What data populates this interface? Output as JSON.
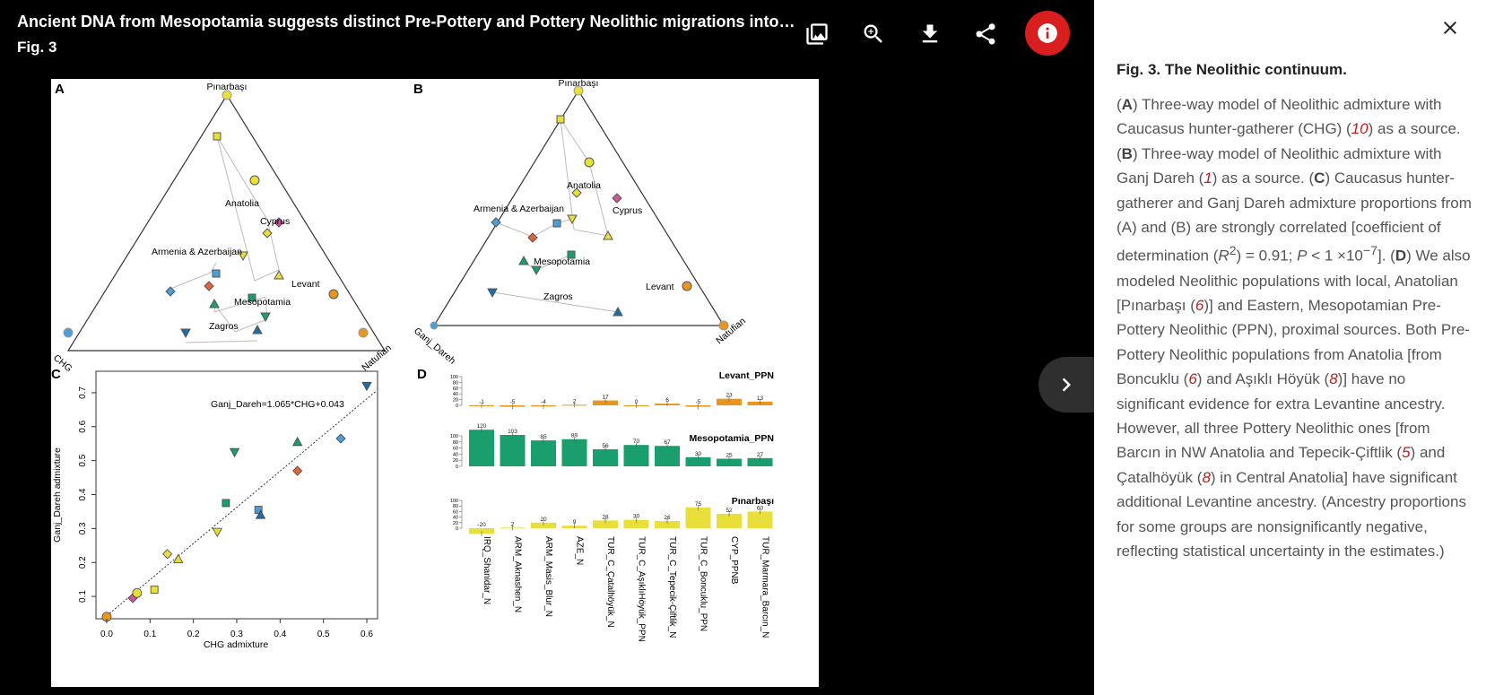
{
  "header": {
    "title": "Ancient DNA from Mesopotamia suggests distinct Pre-Pottery and Pottery Neolithic migrations into An...",
    "fig_label": "Fig. 3"
  },
  "toolbar": {
    "icons": [
      "gallery-icon",
      "zoom-in-icon",
      "download-icon",
      "share-icon",
      "info-icon"
    ]
  },
  "nav": {
    "next_icon": "chevron-right-icon",
    "close_icon": "close-icon"
  },
  "colors": {
    "accent_red": "#d81e1e",
    "link_red": "#c21b1b"
  },
  "figure": {
    "panel_a": {
      "label": "A",
      "corners": {
        "top": "Pınarbaşı",
        "left": "CHG",
        "right": "Natufian"
      },
      "group_labels": [
        "Anatolia",
        "Cyprus",
        "Armenia & Azerbaijan",
        "Levant",
        "Mesopotamia",
        "Zagros"
      ]
    },
    "panel_b": {
      "label": "B",
      "corners": {
        "top": "Pınarbaşı",
        "left": "Ganj_Dareh",
        "right": "Natufian"
      },
      "group_labels": [
        "Anatolia",
        "Cyprus",
        "Armenia & Azerbaijan",
        "Levant",
        "Mesopotamia",
        "Zagros"
      ]
    },
    "panel_c": {
      "label": "C",
      "equation": "Ganj_Dareh=1.065*CHG+0.043",
      "xlabel": "CHG admixture",
      "ylabel": "Ganj_Dareh admixture",
      "xticks": [
        "0.0",
        "0.1",
        "0.2",
        "0.3",
        "0.4",
        "0.5",
        "0.6"
      ],
      "yticks": [
        "0.1",
        "0.2",
        "0.3",
        "0.4",
        "0.5",
        "0.6",
        "0.7"
      ]
    },
    "panel_d": {
      "label": "D",
      "yticks": [
        "100",
        "80",
        "60",
        "40",
        "20",
        "0"
      ],
      "categories": [
        "IRQ_Shanidar_N",
        "ARM_Aknashen_N",
        "ARM_Masis_Blur_N",
        "AZE_N",
        "TUR_C_Çatalhöyük_N",
        "TUR_C_AşıklıHöyük_PPN",
        "TUR_C_Tepecik-Çiftlik_N",
        "TUR_C_Boncuklu_PPN",
        "CYP_PPNB",
        "TUR_Marmara_Barcın_N"
      ],
      "series": [
        {
          "name": "Levant_PPN",
          "values": [
            -1,
            -5,
            -4,
            2,
            17,
            0,
            6,
            -5,
            23,
            13
          ],
          "labels": [
            "-1",
            "-5",
            "-4",
            "2",
            "17",
            "0",
            "6",
            "-5",
            "23",
            "13"
          ],
          "color": "#e8961e"
        },
        {
          "name": "Mesopotamia_PPN",
          "values": [
            120,
            103,
            85,
            89,
            56,
            70,
            67,
            30,
            25,
            27
          ],
          "labels": [
            "120",
            "103",
            "85",
            "89",
            "56",
            "70",
            "67",
            "30",
            "25",
            "27"
          ],
          "color": "#1a9e6e"
        },
        {
          "name": "Pınarbaşı",
          "values": [
            -20,
            2,
            20,
            9,
            28,
            30,
            26,
            75,
            52,
            60
          ],
          "labels": [
            "-20",
            "2",
            "20",
            "9",
            "28",
            "30",
            "26",
            "75",
            "52",
            "60"
          ],
          "color": "#e8df3a"
        }
      ]
    }
  },
  "chart_data": {
    "type": "bar",
    "categories": [
      "IRQ_Shanidar_N",
      "ARM_Aknashen_N",
      "ARM_Masis_Blur_N",
      "AZE_N",
      "TUR_C_Çatalhöyük_N",
      "TUR_C_AşıklıHöyük_PPN",
      "TUR_C_Tepecik-Çiftlik_N",
      "TUR_C_Boncuklu_PPN",
      "CYP_PPNB",
      "TUR_Marmara_Barcın_N"
    ],
    "series": [
      {
        "name": "Levant_PPN",
        "values": [
          -1,
          -5,
          -4,
          2,
          17,
          0,
          6,
          -5,
          23,
          13
        ]
      },
      {
        "name": "Mesopotamia_PPN",
        "values": [
          120,
          103,
          85,
          89,
          56,
          70,
          67,
          30,
          25,
          27
        ]
      },
      {
        "name": "Pınarbaşı",
        "values": [
          -20,
          2,
          20,
          9,
          28,
          30,
          26,
          75,
          52,
          60
        ]
      }
    ],
    "scatter": {
      "type": "scatter",
      "xlabel": "CHG admixture",
      "ylabel": "Ganj_Dareh admixture",
      "xlim": [
        0,
        0.6
      ],
      "ylim": [
        0.05,
        0.75
      ],
      "fit": {
        "slope": 1.065,
        "intercept": 0.043
      },
      "points": [
        {
          "x": 0.0,
          "y": 0.04,
          "shape": "circle",
          "color": "#e8961e"
        },
        {
          "x": 0.06,
          "y": 0.095,
          "shape": "diamond",
          "color": "#d0559a"
        },
        {
          "x": 0.07,
          "y": 0.11,
          "shape": "circle",
          "color": "#e8df3a"
        },
        {
          "x": 0.11,
          "y": 0.12,
          "shape": "square",
          "color": "#e8df3a"
        },
        {
          "x": 0.14,
          "y": 0.225,
          "shape": "diamond",
          "color": "#e8df3a"
        },
        {
          "x": 0.165,
          "y": 0.21,
          "shape": "triangle-up",
          "color": "#e8df3a"
        },
        {
          "x": 0.255,
          "y": 0.29,
          "shape": "triangle-down",
          "color": "#e8df3a"
        },
        {
          "x": 0.275,
          "y": 0.375,
          "shape": "square",
          "color": "#1a9e6e"
        },
        {
          "x": 0.295,
          "y": 0.525,
          "shape": "triangle-down",
          "color": "#1a9e6e"
        },
        {
          "x": 0.35,
          "y": 0.355,
          "shape": "square",
          "color": "#4a9fd8"
        },
        {
          "x": 0.355,
          "y": 0.34,
          "shape": "triangle-up",
          "color": "#1c6fad"
        },
        {
          "x": 0.44,
          "y": 0.47,
          "shape": "diamond",
          "color": "#e3643a"
        },
        {
          "x": 0.44,
          "y": 0.555,
          "shape": "triangle-up",
          "color": "#1a9e6e"
        },
        {
          "x": 0.54,
          "y": 0.565,
          "shape": "diamond",
          "color": "#4a9fd8"
        },
        {
          "x": 0.6,
          "y": 0.72,
          "shape": "triangle-down",
          "color": "#1c6fad"
        }
      ]
    }
  },
  "caption": {
    "title": "Fig. 3. The Neolithic continuum.",
    "p1": "(",
    "a": "A",
    "t1": ") Three-way model of Neolithic admixture with Caucasus hunter-gatherer (CHG) (",
    "r1": "10",
    "t2": ") as a source. (",
    "b": "B",
    "t3": ") Three-way model of Neolithic admixture with Ganj Dareh (",
    "r2": "1",
    "t4": ") as a source. (",
    "c": "C",
    "t5": ") Caucasus hunter-gatherer and Ganj Dareh admixture proportions from (A) and (B) are strongly correlated [coefficient of determination (",
    "r_var": "R",
    "sup2": "2",
    "t6": ") = 0.91; ",
    "p_var": "P",
    "t7": " < 1 ×10",
    "sup7": "−7",
    "t8": "]. (",
    "d": "D",
    "t9": ") We also modeled Neolithic populations with local, Anatolian [Pınarbaşı (",
    "r3": "6",
    "t10": ")] and Eastern, Mesopotamian Pre-Pottery Neolithic (PPN), proximal sources. Both Pre-Pottery Neolithic populations from Anatolia [from Boncuklu (",
    "r4": "6",
    "t11": ") and Aşıklı Höyük (",
    "r5": "8",
    "t12": ")] have no significant evidence for extra Levantine ancestry. However, all three Pottery Neolithic ones [from Barcın in NW Anatolia and Tepecik-Çiftlik (",
    "r6": "5",
    "t13": ") and Çatalhöyük (",
    "r7": "8",
    "t14": ") in Central Anatolia] have significant additional Levantine ancestry. (Ancestry proportions for some groups are nonsignificantly negative, reflecting statistical uncertainty in the estimates.)"
  }
}
